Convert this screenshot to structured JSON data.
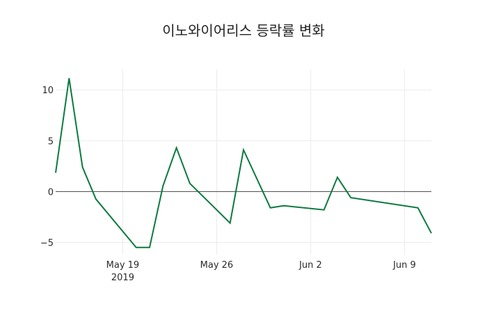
{
  "chart_data": {
    "type": "line",
    "title": "이노와이어리스 등락률 변화",
    "xlabel": "",
    "ylabel": "",
    "x": [
      "2019-05-14",
      "2019-05-15",
      "2019-05-16",
      "2019-05-17",
      "2019-05-20",
      "2019-05-21",
      "2019-05-22",
      "2019-05-23",
      "2019-05-24",
      "2019-05-27",
      "2019-05-28",
      "2019-05-30",
      "2019-05-31",
      "2019-06-03",
      "2019-06-04",
      "2019-06-05",
      "2019-06-10",
      "2019-06-11"
    ],
    "series": [
      {
        "name": "등락률",
        "color": "#0b7a3e",
        "values": [
          1.85,
          11.15,
          2.4,
          -0.75,
          -5.5,
          -5.5,
          0.55,
          4.3,
          0.8,
          -3.1,
          4.1,
          -1.6,
          -1.4,
          -1.8,
          1.4,
          -0.6,
          -1.6,
          -4.1
        ]
      }
    ],
    "x_ticks": [
      {
        "label": "May 19",
        "sublabel": "2019",
        "date": "2019-05-19"
      },
      {
        "label": "May 26",
        "date": "2019-05-26"
      },
      {
        "label": "Jun 2",
        "date": "2019-06-02"
      },
      {
        "label": "Jun 9",
        "date": "2019-06-09"
      }
    ],
    "y_ticks": [
      10,
      5,
      0,
      -5
    ],
    "y_tick_labels": [
      "10",
      "5",
      "0",
      "−5"
    ],
    "ylim": [
      -6.2,
      12
    ],
    "xlim": [
      "2019-05-14",
      "2019-06-11"
    ],
    "grid": true,
    "legend": "none"
  }
}
